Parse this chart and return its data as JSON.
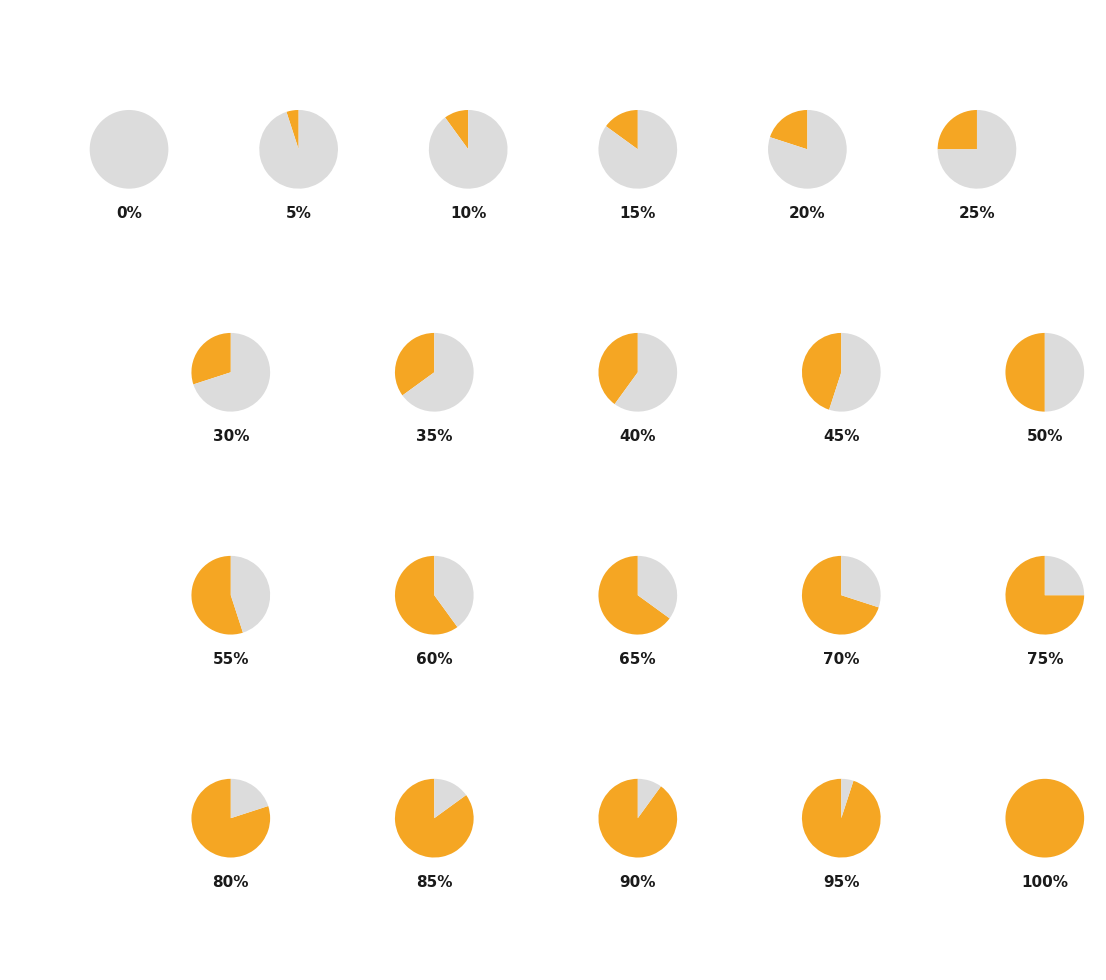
{
  "percentages": [
    0,
    5,
    10,
    15,
    20,
    25,
    30,
    35,
    40,
    45,
    50,
    55,
    60,
    65,
    70,
    75,
    80,
    85,
    90,
    95,
    100
  ],
  "orange_color": "#F5A623",
  "gray_color": "#DCDCDC",
  "background_color": "#FFFFFF",
  "label_color": "#1A1A1A",
  "label_fontsize": 11,
  "label_fontweight": "bold",
  "fig_width": 11.06,
  "fig_height": 9.8,
  "start_angle": 90,
  "rows_layout": [
    [
      0,
      5,
      10,
      15,
      20,
      25
    ],
    [
      30,
      35,
      40,
      45,
      50
    ],
    [
      55,
      60,
      65,
      70,
      75
    ],
    [
      80,
      85,
      90,
      95,
      100
    ]
  ]
}
